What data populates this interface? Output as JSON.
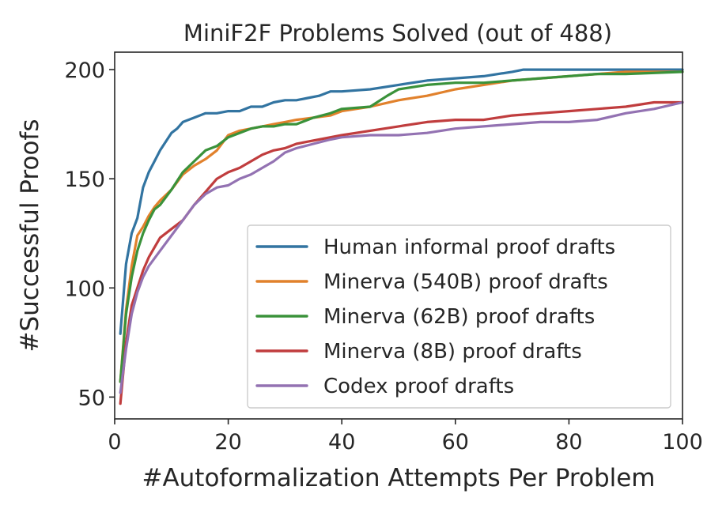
{
  "chart_data": {
    "type": "line",
    "title": "MiniF2F Problems Solved (out of 488)",
    "xlabel": "#Autoformalization Attempts Per Problem",
    "ylabel": "#Successful Proofs",
    "xlim": [
      0,
      100
    ],
    "ylim": [
      40,
      208
    ],
    "xticks": [
      0,
      20,
      40,
      60,
      80,
      100
    ],
    "yticks": [
      50,
      100,
      150,
      200
    ],
    "grid": false,
    "legend_position": "lower-right",
    "series": [
      {
        "name": "Human informal proof drafts",
        "color": "#3274a1",
        "x": [
          1,
          2,
          3,
          4,
          5,
          6,
          7,
          8,
          9,
          10,
          11,
          12,
          14,
          16,
          18,
          20,
          22,
          24,
          26,
          28,
          30,
          32,
          34,
          36,
          38,
          40,
          45,
          50,
          55,
          60,
          65,
          70,
          72,
          80,
          90,
          100
        ],
        "y": [
          79,
          111,
          125,
          132,
          146,
          153,
          158,
          163,
          167,
          171,
          173,
          176,
          178,
          180,
          180,
          181,
          181,
          183,
          183,
          185,
          186,
          186,
          187,
          188,
          190,
          190,
          191,
          193,
          195,
          196,
          197,
          199,
          200,
          200,
          200,
          200
        ]
      },
      {
        "name": "Minerva (540B) proof drafts",
        "color": "#e1812c",
        "x": [
          1,
          2,
          3,
          4,
          5,
          6,
          7,
          8,
          10,
          12,
          14,
          16,
          18,
          20,
          22,
          24,
          26,
          28,
          30,
          32,
          35,
          38,
          40,
          45,
          50,
          55,
          60,
          65,
          70,
          75,
          80,
          85,
          90,
          100
        ],
        "y": [
          57,
          90,
          110,
          124,
          128,
          133,
          137,
          140,
          145,
          152,
          156,
          159,
          163,
          170,
          172,
          173,
          174,
          175,
          176,
          177,
          178,
          179,
          181,
          183,
          186,
          188,
          191,
          193,
          195,
          196,
          197,
          198,
          199,
          199
        ]
      },
      {
        "name": "Minerva (62B) proof drafts",
        "color": "#3a923a",
        "x": [
          1,
          2,
          3,
          4,
          5,
          6,
          7,
          8,
          10,
          12,
          14,
          16,
          18,
          20,
          22,
          24,
          26,
          28,
          30,
          32,
          35,
          38,
          40,
          45,
          48,
          50,
          55,
          60,
          65,
          70,
          75,
          80,
          85,
          90,
          100
        ],
        "y": [
          57,
          88,
          105,
          117,
          125,
          131,
          136,
          138,
          145,
          153,
          158,
          163,
          165,
          169,
          171,
          173,
          174,
          174,
          175,
          175,
          178,
          180,
          182,
          183,
          188,
          191,
          193,
          194,
          194,
          195,
          196,
          197,
          198,
          198,
          199
        ]
      },
      {
        "name": "Minerva (8B) proof drafts",
        "color": "#c03d3e",
        "x": [
          1,
          2,
          3,
          4,
          5,
          6,
          8,
          10,
          12,
          14,
          16,
          18,
          20,
          22,
          24,
          26,
          28,
          30,
          32,
          34,
          36,
          40,
          45,
          50,
          55,
          60,
          65,
          70,
          75,
          80,
          85,
          90,
          95,
          100
        ],
        "y": [
          47,
          75,
          92,
          100,
          108,
          114,
          123,
          127,
          131,
          138,
          144,
          150,
          153,
          155,
          158,
          161,
          163,
          164,
          166,
          167,
          168,
          170,
          172,
          174,
          176,
          177,
          177,
          179,
          180,
          181,
          182,
          183,
          185,
          185
        ]
      },
      {
        "name": "Codex proof drafts",
        "color": "#9372b2",
        "x": [
          1,
          2,
          3,
          4,
          5,
          6,
          8,
          10,
          12,
          14,
          16,
          18,
          20,
          22,
          24,
          26,
          28,
          30,
          32,
          35,
          38,
          40,
          45,
          50,
          55,
          60,
          65,
          70,
          75,
          80,
          85,
          90,
          95,
          100
        ],
        "y": [
          52,
          72,
          88,
          98,
          105,
          110,
          117,
          124,
          131,
          138,
          143,
          146,
          147,
          150,
          152,
          155,
          158,
          162,
          164,
          166,
          168,
          169,
          170,
          170,
          171,
          173,
          174,
          175,
          176,
          176,
          177,
          180,
          182,
          185
        ]
      }
    ]
  }
}
